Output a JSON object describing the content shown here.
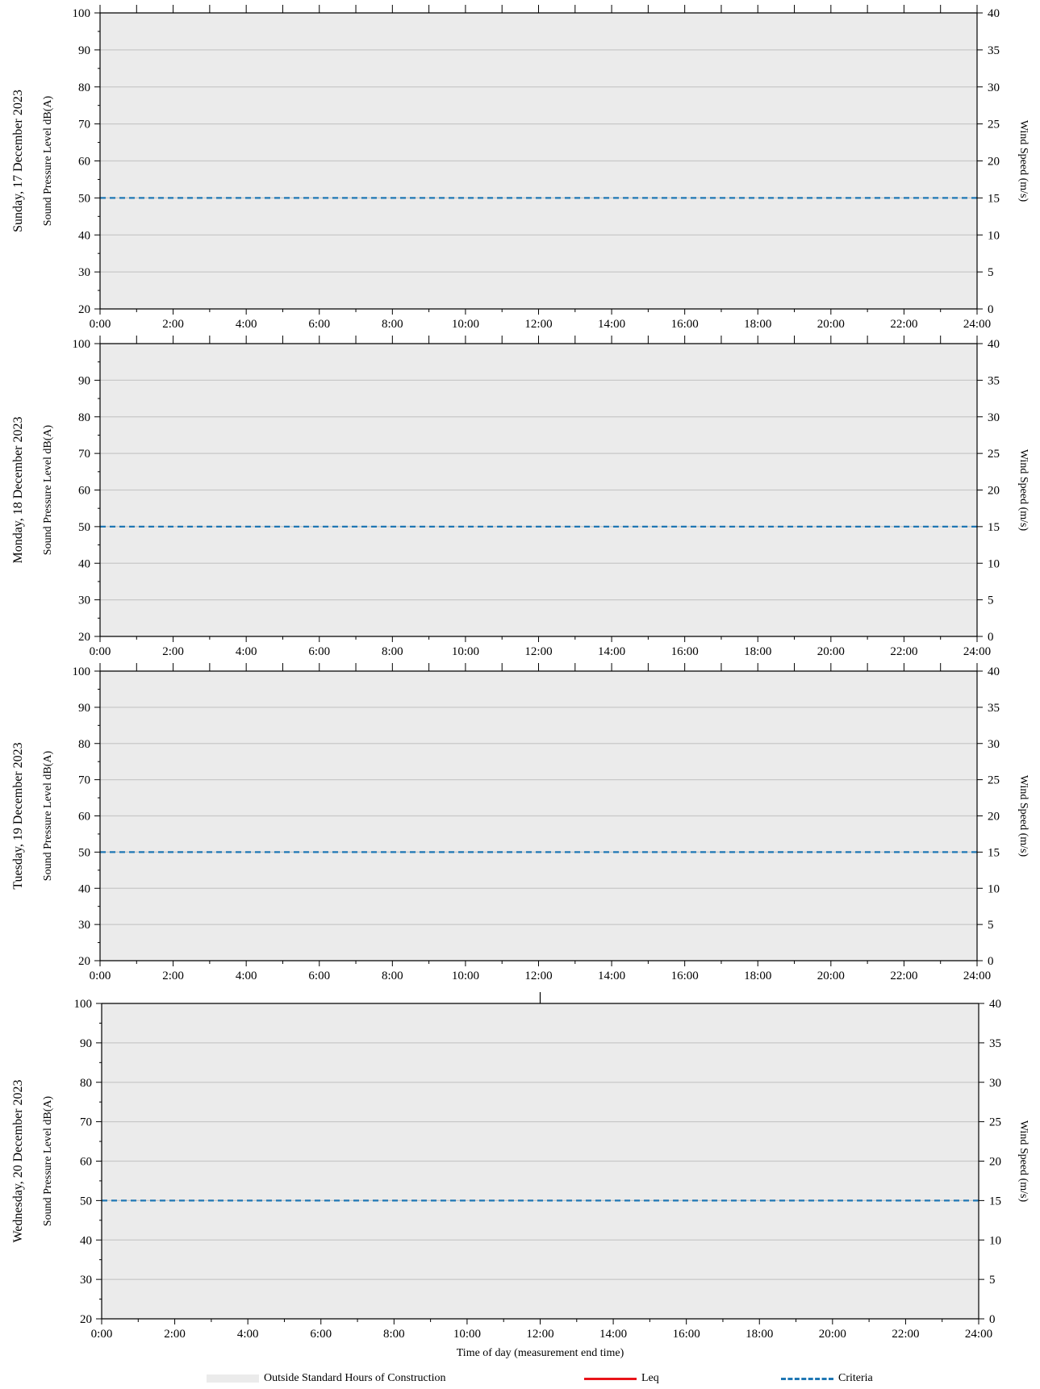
{
  "chart_data": [
    {
      "type": "line",
      "title": "Sunday, 17 December 2023",
      "ylabel": "Sound Pressure Level dB(A)",
      "y2label": "Wind Speed (m/s)",
      "xlabel": "",
      "ylim": [
        20,
        100
      ],
      "y2lim": [
        0,
        40
      ],
      "yticks": [
        "20",
        "30",
        "40",
        "50",
        "60",
        "70",
        "80",
        "90",
        "100"
      ],
      "y2ticks": [
        "0",
        "5",
        "10",
        "15",
        "20",
        "25",
        "30",
        "35",
        "40"
      ],
      "xticks": [
        "0:00",
        "2:00",
        "4:00",
        "6:00",
        "8:00",
        "10:00",
        "12:00",
        "14:00",
        "16:00",
        "18:00",
        "20:00",
        "22:00",
        "24:00"
      ],
      "grid": true,
      "shaded_region": {
        "name": "Outside Standard Hours of Construction",
        "x": [
          "0:00",
          "24:00"
        ]
      },
      "series": [
        {
          "name": "Leq",
          "x": [],
          "y": []
        },
        {
          "name": "Criteria",
          "x": [
            "0:00",
            "24:00"
          ],
          "y": [
            50,
            50
          ]
        }
      ]
    },
    {
      "type": "line",
      "title": "Monday, 18 December 2023",
      "ylabel": "Sound Pressure Level dB(A)",
      "y2label": "Wind Speed (m/s)",
      "xlabel": "",
      "ylim": [
        20,
        100
      ],
      "y2lim": [
        0,
        40
      ],
      "yticks": [
        "20",
        "30",
        "40",
        "50",
        "60",
        "70",
        "80",
        "90",
        "100"
      ],
      "y2ticks": [
        "0",
        "5",
        "10",
        "15",
        "20",
        "25",
        "30",
        "35",
        "40"
      ],
      "xticks": [
        "0:00",
        "2:00",
        "4:00",
        "6:00",
        "8:00",
        "10:00",
        "12:00",
        "14:00",
        "16:00",
        "18:00",
        "20:00",
        "22:00",
        "24:00"
      ],
      "grid": true,
      "shaded_region": {
        "name": "Outside Standard Hours of Construction",
        "x": [
          "0:00",
          "24:00"
        ]
      },
      "series": [
        {
          "name": "Leq",
          "x": [],
          "y": []
        },
        {
          "name": "Criteria",
          "x": [
            "0:00",
            "24:00"
          ],
          "y": [
            50,
            50
          ]
        }
      ]
    },
    {
      "type": "line",
      "title": "Tuesday, 19 December 2023",
      "ylabel": "Sound Pressure Level dB(A)",
      "y2label": "Wind Speed (m/s)",
      "xlabel": "",
      "ylim": [
        20,
        100
      ],
      "y2lim": [
        0,
        40
      ],
      "yticks": [
        "20",
        "30",
        "40",
        "50",
        "60",
        "70",
        "80",
        "90",
        "100"
      ],
      "y2ticks": [
        "0",
        "5",
        "10",
        "15",
        "20",
        "25",
        "30",
        "35",
        "40"
      ],
      "xticks": [
        "0:00",
        "2:00",
        "4:00",
        "6:00",
        "8:00",
        "10:00",
        "12:00",
        "14:00",
        "16:00",
        "18:00",
        "20:00",
        "22:00",
        "24:00"
      ],
      "grid": true,
      "shaded_region": {
        "name": "Outside Standard Hours of Construction",
        "x": [
          "0:00",
          "24:00"
        ]
      },
      "series": [
        {
          "name": "Leq",
          "x": [],
          "y": []
        },
        {
          "name": "Criteria",
          "x": [
            "0:00",
            "24:00"
          ],
          "y": [
            50,
            50
          ]
        }
      ]
    },
    {
      "type": "line",
      "title": "Wednesday, 20 December 2023",
      "ylabel": "Sound Pressure Level dB(A)",
      "y2label": "Wind Speed (m/s)",
      "xlabel": "Time of day (measurement end time)",
      "ylim": [
        20,
        100
      ],
      "y2lim": [
        0,
        40
      ],
      "yticks": [
        "20",
        "30",
        "40",
        "50",
        "60",
        "70",
        "80",
        "90",
        "100"
      ],
      "y2ticks": [
        "0",
        "5",
        "10",
        "15",
        "20",
        "25",
        "30",
        "35",
        "40"
      ],
      "xticks": [
        "0:00",
        "2:00",
        "4:00",
        "6:00",
        "8:00",
        "10:00",
        "12:00",
        "14:00",
        "16:00",
        "18:00",
        "20:00",
        "22:00",
        "24:00"
      ],
      "grid": true,
      "shaded_region": {
        "name": "Outside Standard Hours of Construction",
        "x": [
          "0:00",
          "24:00"
        ]
      },
      "series": [
        {
          "name": "Leq",
          "x": [],
          "y": []
        },
        {
          "name": "Criteria",
          "x": [
            "0:00",
            "24:00"
          ],
          "y": [
            50,
            50
          ]
        }
      ]
    }
  ],
  "legend": {
    "placement": "bottom",
    "items": [
      {
        "label": "Outside Standard Hours of Construction",
        "style": "shade",
        "color": "#ebebeb"
      },
      {
        "label": "Leq",
        "style": "line",
        "color": "#e8141a"
      },
      {
        "label": "Criteria",
        "style": "dash",
        "color": "#1f77b4"
      }
    ]
  },
  "colors": {
    "plot_background": "#ebebeb",
    "gridline": "#c8c8c8",
    "criteria": "#1f77b4",
    "leq": "#e8141a"
  }
}
